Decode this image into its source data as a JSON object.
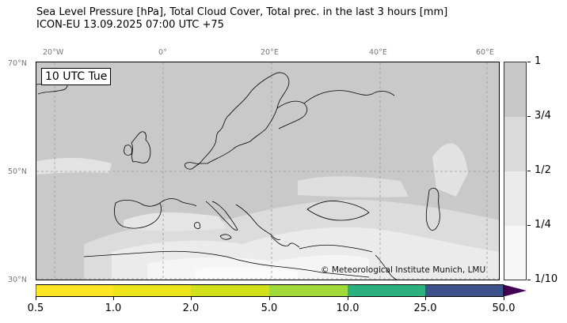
{
  "header": {
    "title_line1": "Sea Level Pressure [hPa], Total Cloud Cover, Total prec. in the last 3 hours [mm]",
    "title_line2": "ICON-EU 13.09.2025 07:00 UTC +75"
  },
  "map": {
    "time_stamp": "10 UTC Tue",
    "credit": "© Meteorological Institute Munich, LMU",
    "lon_labels": [
      "20°W",
      "0°",
      "20°E",
      "40°E",
      "60°E"
    ],
    "lat_labels": [
      "70°N",
      "50°N",
      "30°N"
    ],
    "colors": {
      "cloud_full": "#c9c9c9",
      "cloud_mid": "#dcdcdc",
      "cloud_light": "#ececec",
      "cloud_clear": "#f7f7f7",
      "coast": "#000000",
      "grid": "#999999"
    }
  },
  "cloud_colorbar": {
    "labels": [
      "1",
      "3/4",
      "1/2",
      "1/4",
      "1/10"
    ],
    "colors": [
      "#c8c8c8",
      "#dadada",
      "#ebebeb",
      "#f7f7f7"
    ]
  },
  "precip_colorbar": {
    "labels": [
      "0.5",
      "1.0",
      "2.0",
      "5.0",
      "10.0",
      "25.0",
      "50.0"
    ],
    "colors": [
      "#fde725",
      "#ece51b",
      "#d0e11c",
      "#a0da39",
      "#2cb17e",
      "#3b528b"
    ],
    "extend_color": "#440154"
  }
}
